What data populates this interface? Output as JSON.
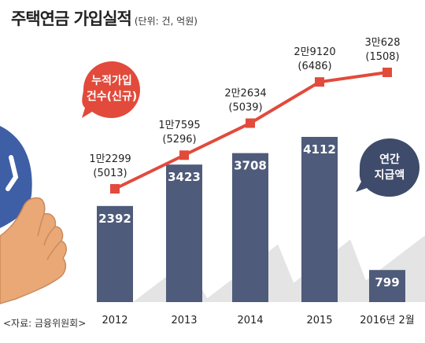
{
  "title": "주택연금 가입실적",
  "unit": "(단위: 건, 억원)",
  "source": "<자료: 금융위원회>",
  "colors": {
    "bar": "#4f5b7a",
    "line": "#e24a3b",
    "shadow": "#e4e4e4",
    "bubble_red": "#e24a3b",
    "bubble_navy": "#3f4b6b"
  },
  "legend": {
    "line_label_1": "누적가입",
    "line_label_2": "건수(신규)",
    "bar_label_1": "연간",
    "bar_label_2": "지급액"
  },
  "chart_data": {
    "type": "bar",
    "categories": [
      "2012",
      "2013",
      "2014",
      "2015",
      "2016년 2월"
    ],
    "series": [
      {
        "name": "연간 지급액",
        "type": "bar",
        "values": [
          2392,
          3423,
          3708,
          4112,
          799
        ],
        "labels": [
          "2392",
          "3423",
          "3708",
          "4112",
          "799"
        ]
      },
      {
        "name": "누적가입 건수(신규)",
        "type": "line",
        "values": [
          12299,
          17595,
          22634,
          29120,
          30628
        ],
        "new_values": [
          5013,
          5296,
          5039,
          6486,
          1508
        ],
        "labels": [
          "1만2299",
          "1만7595",
          "2만2634",
          "2만9120",
          "3만628"
        ],
        "sub_labels": [
          "(5013)",
          "(5296)",
          "(5039)",
          "(6486)",
          "(1508)"
        ]
      }
    ],
    "xlabel": "",
    "ylabel": ""
  }
}
